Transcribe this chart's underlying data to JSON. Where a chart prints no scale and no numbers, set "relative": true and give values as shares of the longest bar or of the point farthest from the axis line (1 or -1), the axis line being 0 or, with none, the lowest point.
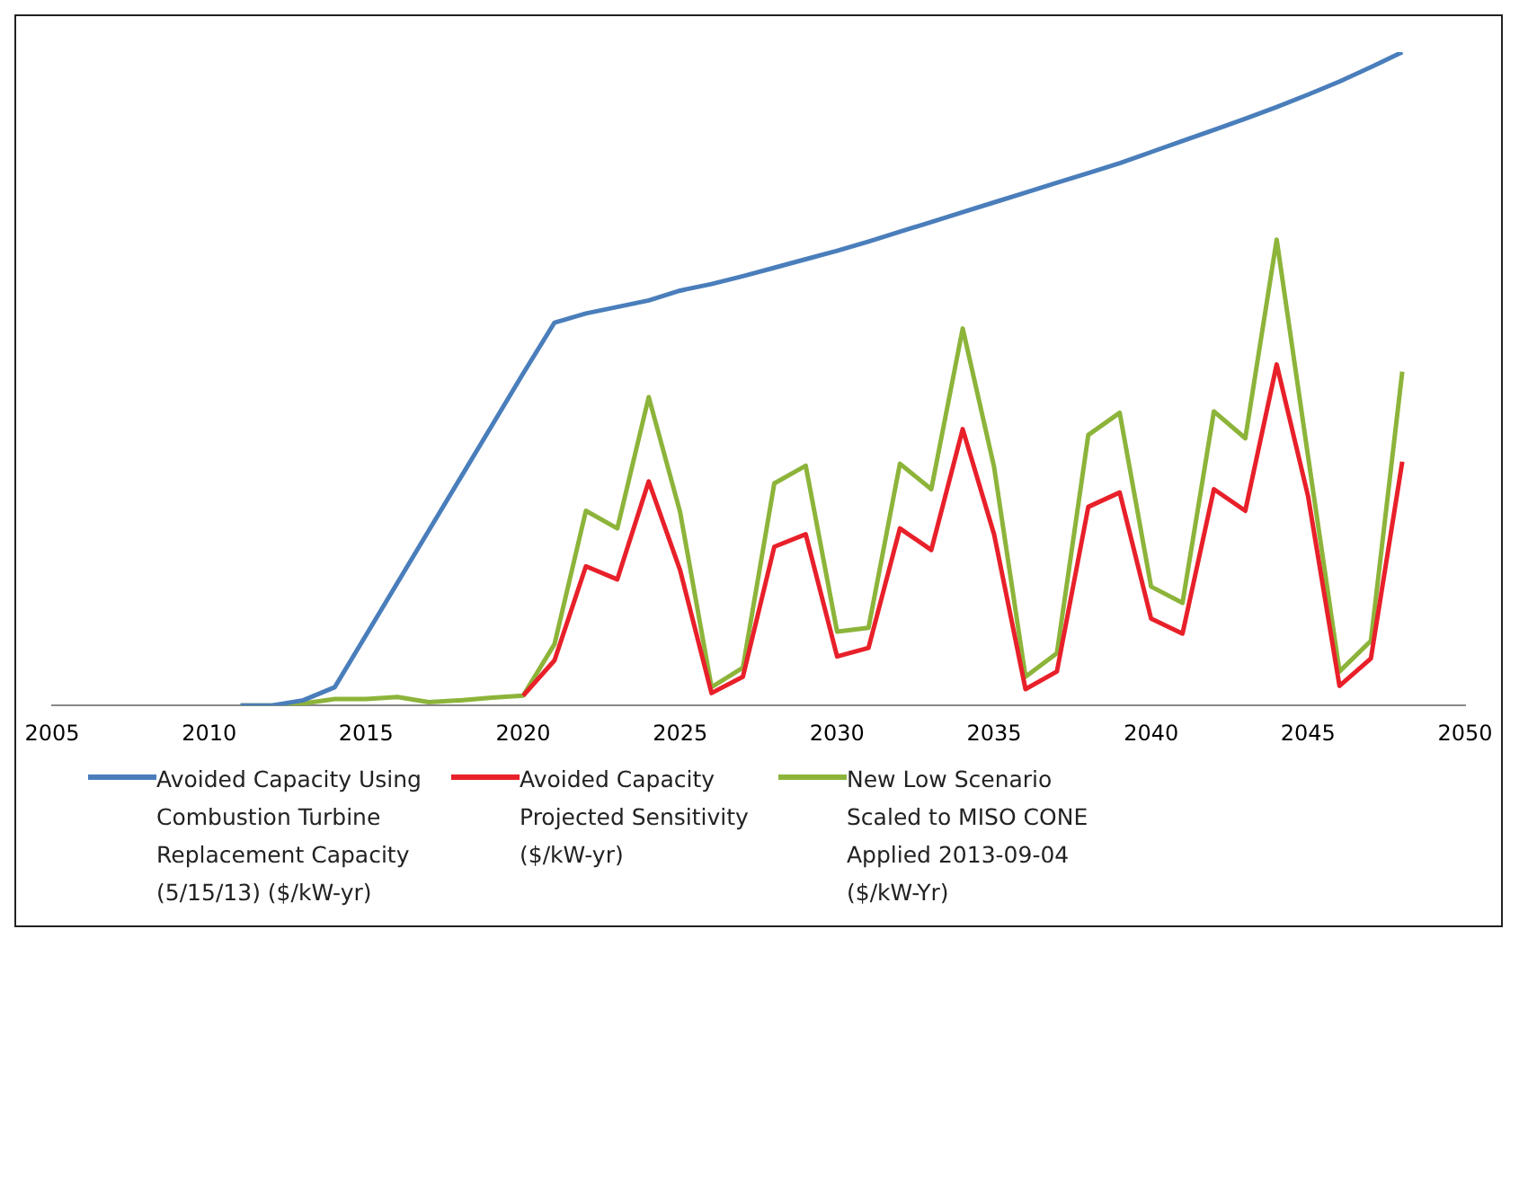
{
  "chart_data": {
    "type": "line",
    "relative": true,
    "xlim": [
      2005,
      2050
    ],
    "xticks": [
      2005,
      2010,
      2015,
      2020,
      2025,
      2030,
      2035,
      2040,
      2045,
      2050
    ],
    "grid": false,
    "legend": "bottom",
    "marker": "none",
    "line_style": "solid",
    "series": [
      {
        "name": "Avoided Capacity Using Combustion Turbine Replacement Capacity (5/15/13) ($/kW-yr)",
        "color": "#4a7ebb",
        "x": [
          2011,
          2012,
          2013,
          2014,
          2015,
          2016,
          2017,
          2018,
          2019,
          2020,
          2021,
          2022,
          2023,
          2024,
          2025,
          2026,
          2027,
          2028,
          2029,
          2030,
          2031,
          2032,
          2033,
          2034,
          2035,
          2036,
          2037,
          2038,
          2039,
          2040,
          2041,
          2042,
          2043,
          2044,
          2045,
          2046,
          2047,
          2048
        ],
        "values": [
          0,
          0,
          0.008,
          0.028,
          0.108,
          0.188,
          0.268,
          0.348,
          0.428,
          0.508,
          0.586,
          0.6,
          0.61,
          0.62,
          0.635,
          0.645,
          0.657,
          0.67,
          0.683,
          0.696,
          0.71,
          0.725,
          0.74,
          0.755,
          0.77,
          0.785,
          0.8,
          0.815,
          0.83,
          0.847,
          0.864,
          0.881,
          0.898,
          0.916,
          0.935,
          0.955,
          0.977,
          1
        ]
      },
      {
        "name": "Avoided Capacity Projected Sensitivity ($/kW-yr)",
        "color": "#e8202a",
        "x": [
          2020,
          2021,
          2022,
          2023,
          2024,
          2025,
          2026,
          2027,
          2028,
          2029,
          2030,
          2031,
          2032,
          2033,
          2034,
          2035,
          2036,
          2037,
          2038,
          2039,
          2040,
          2041,
          2042,
          2043,
          2044,
          2045,
          2046,
          2047,
          2048
        ],
        "values": [
          0.015,
          0.069,
          0.213,
          0.193,
          0.343,
          0.207,
          0.019,
          0.044,
          0.243,
          0.262,
          0.075,
          0.088,
          0.271,
          0.238,
          0.423,
          0.262,
          0.025,
          0.052,
          0.304,
          0.326,
          0.133,
          0.11,
          0.331,
          0.298,
          0.522,
          0.32,
          0.03,
          0.072,
          0.373
        ]
      },
      {
        "name": "New Low Scenario Scaled to MISO CONE Applied 2013-09-04 ($/kW-Yr)",
        "color": "#8db43a",
        "x": [
          2011,
          2012,
          2013,
          2014,
          2015,
          2016,
          2017,
          2018,
          2019,
          2020,
          2021,
          2022,
          2023,
          2024,
          2025,
          2026,
          2027,
          2028,
          2029,
          2030,
          2031,
          2032,
          2033,
          2034,
          2035,
          2036,
          2037,
          2038,
          2039,
          2040,
          2041,
          2042,
          2043,
          2044,
          2045,
          2046,
          2047,
          2048
        ],
        "values": [
          0,
          0,
          0.003,
          0.01,
          0.01,
          0.013,
          0.005,
          0.008,
          0.012,
          0.015,
          0.094,
          0.298,
          0.271,
          0.472,
          0.296,
          0.028,
          0.058,
          0.34,
          0.367,
          0.113,
          0.119,
          0.37,
          0.331,
          0.577,
          0.365,
          0.044,
          0.08,
          0.414,
          0.448,
          0.182,
          0.157,
          0.45,
          0.409,
          0.713,
          0.381,
          0.052,
          0.099,
          0.511
        ]
      }
    ]
  }
}
